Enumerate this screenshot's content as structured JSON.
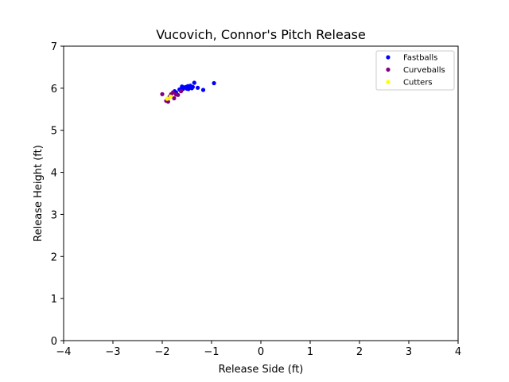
{
  "chart_data": {
    "type": "scatter",
    "title": "Vucovich, Connor's Pitch Release",
    "xlabel": "Release Side (ft)",
    "ylabel": "Release Height (ft)",
    "xlim": [
      -4,
      4
    ],
    "ylim": [
      0,
      7
    ],
    "xticks": [
      "−4",
      "−3",
      "−2",
      "−1",
      "0",
      "1",
      "2",
      "3",
      "4"
    ],
    "yticks": [
      "0",
      "1",
      "2",
      "3",
      "4",
      "5",
      "6",
      "7"
    ],
    "legend_position": "top-right",
    "grid": false,
    "series": [
      {
        "name": "Fastballs",
        "color": "#0000ff",
        "points": [
          [
            -1.75,
            5.93
          ],
          [
            -1.72,
            5.9
          ],
          [
            -1.65,
            5.97
          ],
          [
            -1.6,
            6.04
          ],
          [
            -1.58,
            5.98
          ],
          [
            -1.52,
            6.03
          ],
          [
            -1.5,
            5.99
          ],
          [
            -1.48,
            6.05
          ],
          [
            -1.45,
            6.02
          ],
          [
            -1.43,
            6.06
          ],
          [
            -1.4,
            6.0
          ],
          [
            -1.38,
            6.03
          ],
          [
            -1.35,
            6.13
          ],
          [
            -1.28,
            6.01
          ],
          [
            -1.17,
            5.96
          ],
          [
            -0.95,
            6.12
          ],
          [
            -1.55,
            6.02
          ],
          [
            -1.47,
            5.98
          ]
        ]
      },
      {
        "name": "Curveballs",
        "color": "#800080",
        "points": [
          [
            -2.0,
            5.86
          ],
          [
            -1.92,
            5.7
          ],
          [
            -1.88,
            5.68
          ],
          [
            -1.85,
            5.8
          ],
          [
            -1.82,
            5.86
          ],
          [
            -1.78,
            5.9
          ],
          [
            -1.76,
            5.76
          ],
          [
            -1.72,
            5.85
          ],
          [
            -1.68,
            5.84
          ],
          [
            -1.62,
            5.93
          ]
        ]
      },
      {
        "name": "Cutters",
        "color": "#ffff00",
        "points": [
          [
            -1.9,
            5.75
          ],
          [
            -1.83,
            5.8
          ]
        ]
      }
    ]
  }
}
